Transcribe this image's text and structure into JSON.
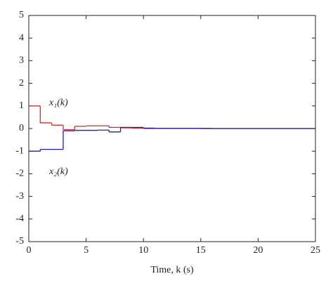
{
  "chart_data": {
    "type": "step",
    "xlabel": "Time, k (s)",
    "x": [
      0,
      1,
      2,
      3,
      4,
      5,
      6,
      7,
      8,
      9,
      10,
      11,
      12,
      13,
      14,
      15,
      16,
      17,
      18,
      19,
      20,
      21,
      22,
      23,
      24
    ],
    "series": [
      {
        "name": "x₁(k)",
        "color": "#d62728",
        "values": [
          1,
          0.25,
          0.15,
          -0.05,
          0.1,
          0.12,
          0.12,
          0.05,
          0.03,
          0.02,
          0,
          0.01,
          0.01,
          0.01,
          0.01,
          0.01,
          0,
          0,
          0,
          0,
          0,
          0,
          0,
          0,
          0
        ]
      },
      {
        "name": "x₂(k)",
        "color": "#1f1f9e",
        "values": [
          -1,
          -0.92,
          -0.92,
          -0.1,
          -0.08,
          -0.08,
          -0.07,
          -0.15,
          0.05,
          0.05,
          0.02,
          0.01,
          0.01,
          0.01,
          0.01,
          0,
          0,
          0,
          0,
          0,
          0,
          0,
          0,
          0,
          0
        ]
      }
    ],
    "xlim": [
      0,
      25
    ],
    "ylim": [
      -5,
      5
    ],
    "xticks": [
      0,
      5,
      10,
      15,
      20,
      25
    ],
    "yticks": [
      -5,
      -4,
      -3,
      -2,
      -1,
      0,
      1,
      2,
      3,
      4,
      5
    ]
  }
}
